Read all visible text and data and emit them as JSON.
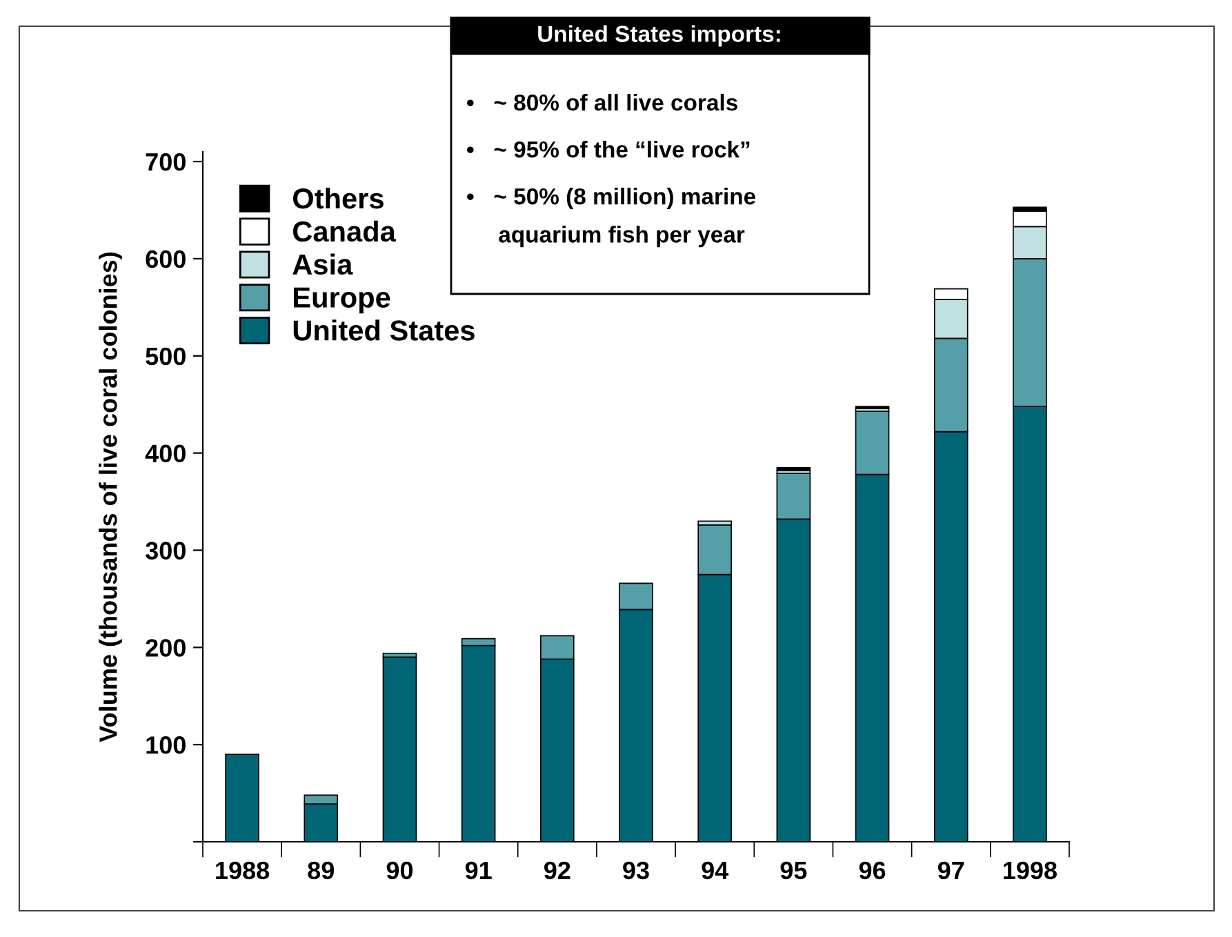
{
  "chart_data": {
    "type": "bar",
    "stacked": true,
    "ylabel": "Volume (thousands of live coral colonies)",
    "categories": [
      "1988",
      "89",
      "90",
      "91",
      "92",
      "93",
      "94",
      "95",
      "96",
      "97",
      "1998"
    ],
    "series": [
      {
        "name": "United States",
        "color": "#006675",
        "values": [
          90,
          39,
          190,
          202,
          188,
          239,
          275,
          332,
          378,
          422,
          448
        ]
      },
      {
        "name": "Europe",
        "color": "#559fa8",
        "values": [
          0,
          9,
          4,
          7,
          24,
          27,
          51,
          47,
          65,
          96,
          152
        ]
      },
      {
        "name": "Asia",
        "color": "#c0e0e2",
        "values": [
          0,
          0,
          0,
          0,
          0,
          0,
          4,
          3,
          3,
          40,
          33
        ]
      },
      {
        "name": "Canada",
        "color": "#ffffff",
        "values": [
          0,
          0,
          0,
          0,
          0,
          0,
          0,
          0,
          0,
          11,
          16
        ]
      },
      {
        "name": "Others",
        "color": "#000000",
        "values": [
          0,
          0,
          0,
          0,
          0,
          0,
          0,
          3,
          2,
          0,
          4
        ]
      }
    ],
    "ylim": [
      0,
      710
    ],
    "yticks": [
      {
        "value": 0,
        "label": null
      },
      100,
      200,
      300,
      400,
      500,
      600,
      700
    ],
    "legend": "top left",
    "grid": false,
    "annotations": [
      "United States imports:",
      "•   ~ 80% of all live corals",
      "•   ~ 95% of the “live rock”",
      "•   ~ 50% (8 million) marine\n     aquarium fish per year"
    ]
  }
}
